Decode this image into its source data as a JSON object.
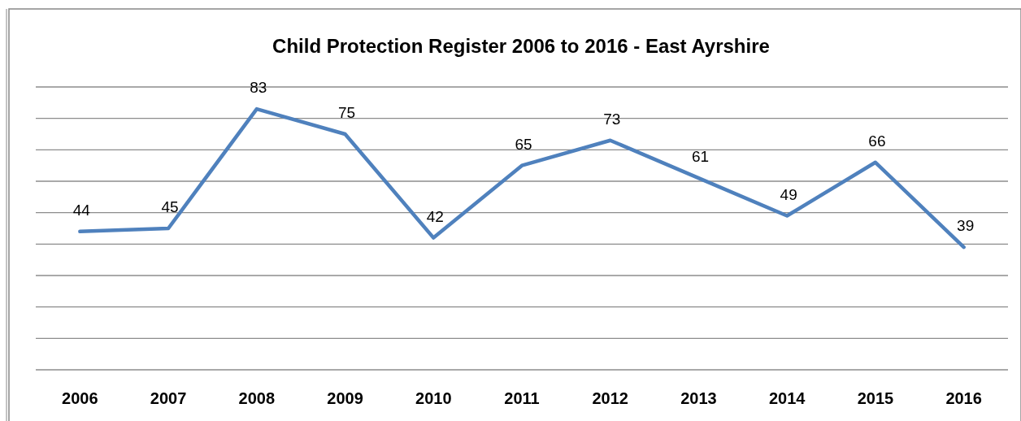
{
  "chart_data": {
    "type": "line",
    "title": "Child Protection Register 2006 to 2016 - East Ayrshire",
    "categories": [
      "2006",
      "2007",
      "2008",
      "2009",
      "2010",
      "2011",
      "2012",
      "2013",
      "2014",
      "2015",
      "2016"
    ],
    "series": [
      {
        "color": "#4f81bd",
        "values": [
          44,
          45,
          83,
          75,
          42,
          65,
          73,
          61,
          49,
          66,
          39
        ]
      }
    ],
    "ylim": [
      0,
      90
    ],
    "yticks": [
      {
        "value": 0,
        "label": null
      },
      {
        "value": 10,
        "label": null
      },
      {
        "value": 20,
        "label": null
      },
      {
        "value": 30,
        "label": null
      },
      {
        "value": 40,
        "label": null
      },
      {
        "value": 50,
        "label": null
      },
      {
        "value": 60,
        "label": null
      },
      {
        "value": 70,
        "label": null
      },
      {
        "value": 80,
        "label": null
      },
      {
        "value": 90,
        "label": null
      }
    ],
    "grid": "y",
    "tick_labels": "x",
    "data_labels": true,
    "marker": "none",
    "line_style": "solid"
  }
}
